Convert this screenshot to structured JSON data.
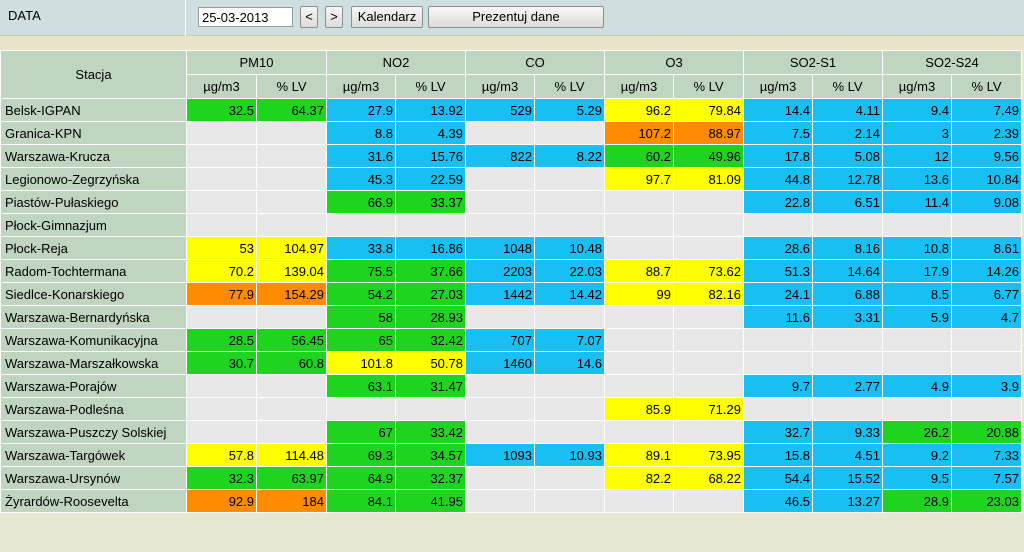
{
  "header": {
    "date_label": "DATA",
    "date_value": "25-03-2013",
    "prev_label": "<",
    "next_label": ">",
    "calendar_label": "Kalendarz",
    "present_label": "Prezentuj dane"
  },
  "colors": {
    "green": "#1ed41e",
    "blue": "#17bff2",
    "yellow": "#ffff00",
    "orange": "#ff8c00",
    "empty": "#e8e8e8",
    "header_bg": "#bfd5bf"
  },
  "table": {
    "station_header": "Stacja",
    "pollutants": [
      "PM10",
      "NO2",
      "CO",
      "O3",
      "SO2-S1",
      "SO2-S24"
    ],
    "sub_headers": [
      "µg/m3",
      "% LV"
    ],
    "rows": [
      {
        "station": "Belsk-IGPAN",
        "cells": [
          [
            "32.5",
            "64.37",
            "g"
          ],
          [
            "27.9",
            "13.92",
            "b"
          ],
          [
            "529",
            "5.29",
            "b"
          ],
          [
            "96.2",
            "79.84",
            "y"
          ],
          [
            "14.4",
            "4.11",
            "b"
          ],
          [
            "9.4",
            "7.49",
            "b"
          ]
        ]
      },
      {
        "station": "Granica-KPN",
        "cells": [
          [
            "",
            "",
            "e"
          ],
          [
            "8.8",
            "4.39",
            "b"
          ],
          [
            "",
            "",
            "e"
          ],
          [
            "107.2",
            "88.97",
            "o"
          ],
          [
            "7.5",
            "2.14",
            "b"
          ],
          [
            "3",
            "2.39",
            "b"
          ]
        ]
      },
      {
        "station": "Warszawa-Krucza",
        "cells": [
          [
            "",
            "",
            "e"
          ],
          [
            "31.6",
            "15.76",
            "b"
          ],
          [
            "822",
            "8.22",
            "b"
          ],
          [
            "60.2",
            "49.96",
            "g"
          ],
          [
            "17.8",
            "5.08",
            "b"
          ],
          [
            "12",
            "9.56",
            "b"
          ]
        ]
      },
      {
        "station": "Legionowo-Zegrzyńska",
        "cells": [
          [
            "",
            "",
            "e"
          ],
          [
            "45.3",
            "22.59",
            "b"
          ],
          [
            "",
            "",
            "e"
          ],
          [
            "97.7",
            "81.09",
            "y"
          ],
          [
            "44.8",
            "12.78",
            "b"
          ],
          [
            "13.6",
            "10.84",
            "b"
          ]
        ]
      },
      {
        "station": "Piastów-Pułaskiego",
        "cells": [
          [
            "",
            "",
            "e"
          ],
          [
            "66.9",
            "33.37",
            "g"
          ],
          [
            "",
            "",
            "e"
          ],
          [
            "",
            "",
            "e"
          ],
          [
            "22.8",
            "6.51",
            "b"
          ],
          [
            "11.4",
            "9.08",
            "b"
          ]
        ]
      },
      {
        "station": "Płock-Gimnazjum",
        "cells": [
          [
            "",
            "",
            "e"
          ],
          [
            "",
            "",
            "e"
          ],
          [
            "",
            "",
            "e"
          ],
          [
            "",
            "",
            "e"
          ],
          [
            "",
            "",
            "e"
          ],
          [
            "",
            "",
            "e"
          ]
        ]
      },
      {
        "station": "Płock-Reja",
        "cells": [
          [
            "53",
            "104.97",
            "y"
          ],
          [
            "33.8",
            "16.86",
            "b"
          ],
          [
            "1048",
            "10.48",
            "b"
          ],
          [
            "",
            "",
            "e"
          ],
          [
            "28.6",
            "8.16",
            "b"
          ],
          [
            "10.8",
            "8.61",
            "b"
          ]
        ]
      },
      {
        "station": "Radom-Tochtermana",
        "cells": [
          [
            "70.2",
            "139.04",
            "y"
          ],
          [
            "75.5",
            "37.66",
            "g"
          ],
          [
            "2203",
            "22.03",
            "b"
          ],
          [
            "88.7",
            "73.62",
            "y"
          ],
          [
            "51.3",
            "14.64",
            "b"
          ],
          [
            "17.9",
            "14.26",
            "b"
          ]
        ]
      },
      {
        "station": "Siedlce-Konarskiego",
        "cells": [
          [
            "77.9",
            "154.29",
            "o"
          ],
          [
            "54.2",
            "27.03",
            "g"
          ],
          [
            "1442",
            "14.42",
            "b"
          ],
          [
            "99",
            "82.16",
            "y"
          ],
          [
            "24.1",
            "6.88",
            "b"
          ],
          [
            "8.5",
            "6.77",
            "b"
          ]
        ]
      },
      {
        "station": "Warszawa-Bernardyńska",
        "cells": [
          [
            "",
            "",
            "e"
          ],
          [
            "58",
            "28.93",
            "g"
          ],
          [
            "",
            "",
            "e"
          ],
          [
            "",
            "",
            "e"
          ],
          [
            "11.6",
            "3.31",
            "b"
          ],
          [
            "5.9",
            "4.7",
            "b"
          ]
        ]
      },
      {
        "station": "Warszawa-Komunikacyjna",
        "cells": [
          [
            "28.5",
            "56.45",
            "g"
          ],
          [
            "65",
            "32.42",
            "g"
          ],
          [
            "707",
            "7.07",
            "b"
          ],
          [
            "",
            "",
            "e"
          ],
          [
            "",
            "",
            "e"
          ],
          [
            "",
            "",
            "e"
          ]
        ]
      },
      {
        "station": "Warszawa-Marszałkowska",
        "cells": [
          [
            "30.7",
            "60.8",
            "g"
          ],
          [
            "101.8",
            "50.78",
            "y"
          ],
          [
            "1460",
            "14.6",
            "b"
          ],
          [
            "",
            "",
            "e"
          ],
          [
            "",
            "",
            "e"
          ],
          [
            "",
            "",
            "e"
          ]
        ]
      },
      {
        "station": "Warszawa-Porajów",
        "cells": [
          [
            "",
            "",
            "e"
          ],
          [
            "63.1",
            "31.47",
            "g"
          ],
          [
            "",
            "",
            "e"
          ],
          [
            "",
            "",
            "e"
          ],
          [
            "9.7",
            "2.77",
            "b"
          ],
          [
            "4.9",
            "3.9",
            "b"
          ]
        ]
      },
      {
        "station": "Warszawa-Podleśna",
        "cells": [
          [
            "",
            "",
            "e"
          ],
          [
            "",
            "",
            "e"
          ],
          [
            "",
            "",
            "e"
          ],
          [
            "85.9",
            "71.29",
            "y"
          ],
          [
            "",
            "",
            "e"
          ],
          [
            "",
            "",
            "e"
          ]
        ]
      },
      {
        "station": "Warszawa-Puszczy Solskiej",
        "cells": [
          [
            "",
            "",
            "e"
          ],
          [
            "67",
            "33.42",
            "g"
          ],
          [
            "",
            "",
            "e"
          ],
          [
            "",
            "",
            "e"
          ],
          [
            "32.7",
            "9.33",
            "b"
          ],
          [
            "26.2",
            "20.88",
            "g"
          ]
        ]
      },
      {
        "station": "Warszawa-Targówek",
        "cells": [
          [
            "57.8",
            "114.48",
            "y"
          ],
          [
            "69.3",
            "34.57",
            "g"
          ],
          [
            "1093",
            "10.93",
            "b"
          ],
          [
            "89.1",
            "73.95",
            "y"
          ],
          [
            "15.8",
            "4.51",
            "b"
          ],
          [
            "9.2",
            "7.33",
            "b"
          ]
        ]
      },
      {
        "station": "Warszawa-Ursynów",
        "cells": [
          [
            "32.3",
            "63.97",
            "g"
          ],
          [
            "64.9",
            "32.37",
            "g"
          ],
          [
            "",
            "",
            "e"
          ],
          [
            "82.2",
            "68.22",
            "y"
          ],
          [
            "54.4",
            "15.52",
            "b"
          ],
          [
            "9.5",
            "7.57",
            "b"
          ]
        ]
      },
      {
        "station": "Żyrardów-Roosevelta",
        "cells": [
          [
            "92.9",
            "184",
            "o"
          ],
          [
            "84.1",
            "41.95",
            "g"
          ],
          [
            "",
            "",
            "e"
          ],
          [
            "",
            "",
            "e"
          ],
          [
            "46.5",
            "13.27",
            "b"
          ],
          [
            "28.9",
            "23.03",
            "g"
          ]
        ]
      }
    ]
  }
}
